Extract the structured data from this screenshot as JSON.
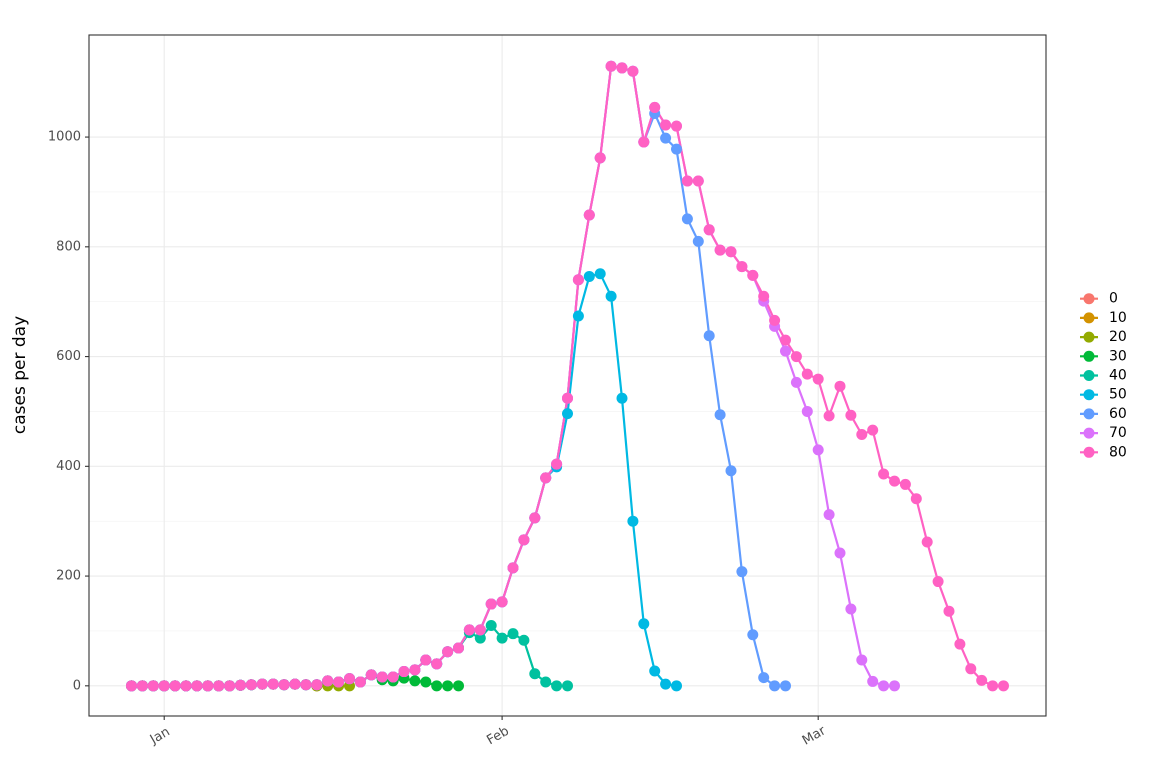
{
  "chart_data": {
    "type": "line",
    "y_label": "cases per day",
    "x": [
      -3,
      -2,
      -1,
      0,
      1,
      2,
      3,
      4,
      5,
      6,
      7,
      8,
      9,
      10,
      11,
      12,
      13,
      14,
      15,
      16,
      17,
      18,
      19,
      20,
      21,
      22,
      23,
      24,
      25,
      26,
      27,
      28,
      29,
      30,
      31,
      32,
      33,
      34,
      35,
      36,
      37,
      38,
      39,
      40,
      41,
      42,
      43,
      44,
      45,
      46,
      47,
      48,
      49,
      50,
      51,
      52,
      53,
      54,
      55,
      56,
      57,
      58,
      59,
      60,
      61,
      62,
      63,
      64,
      65,
      66,
      67,
      68,
      69,
      70,
      71,
      72,
      73,
      74,
      75,
      76,
      77
    ],
    "xlim": [
      -6.9,
      80.9
    ],
    "xticks": [
      {
        "value": 0,
        "label": "Jan"
      },
      {
        "value": 31,
        "label": "Feb"
      },
      {
        "value": 60,
        "label": "Mar"
      }
    ],
    "ylim": [
      -55,
      1186
    ],
    "yticks": [
      0,
      200,
      400,
      600,
      800,
      1000
    ],
    "grid": true,
    "legend": "right",
    "series": [
      {
        "name": "0",
        "color": "#F8766D",
        "values": [
          0,
          0,
          0,
          0,
          0,
          0,
          0,
          0,
          0,
          0,
          1,
          2,
          3,
          3,
          2,
          3,
          2,
          null,
          null,
          null,
          null,
          null,
          null,
          null,
          null,
          null,
          null,
          null,
          null,
          null,
          null,
          null,
          null,
          null,
          null,
          null,
          null,
          null,
          null,
          null,
          null,
          null,
          null,
          null,
          null,
          null,
          null,
          null,
          null,
          null,
          null,
          null,
          null,
          null,
          null,
          null,
          null,
          null,
          null,
          null,
          null,
          null,
          null,
          null,
          null,
          null,
          null,
          null,
          null,
          null,
          null,
          null,
          null,
          null,
          null,
          null,
          null,
          null,
          null,
          null,
          null
        ]
      },
      {
        "name": "10",
        "color": "#D39200",
        "values": [
          0,
          0,
          0,
          0,
          0,
          0,
          0,
          0,
          0,
          0,
          1,
          2,
          3,
          3,
          2,
          3,
          2,
          0,
          null,
          null,
          null,
          null,
          null,
          null,
          null,
          null,
          null,
          null,
          null,
          null,
          null,
          null,
          null,
          null,
          null,
          null,
          null,
          null,
          null,
          null,
          null,
          null,
          null,
          null,
          null,
          null,
          null,
          null,
          null,
          null,
          null,
          null,
          null,
          null,
          null,
          null,
          null,
          null,
          null,
          null,
          null,
          null,
          null,
          null,
          null,
          null,
          null,
          null,
          null,
          null,
          null,
          null,
          null,
          null,
          null,
          null,
          null,
          null,
          null,
          null,
          null
        ]
      },
      {
        "name": "20",
        "color": "#93AA00",
        "values": [
          0,
          0,
          0,
          0,
          0,
          0,
          0,
          0,
          0,
          0,
          1,
          2,
          3,
          3,
          2,
          3,
          2,
          0,
          0,
          0,
          0,
          null,
          null,
          null,
          null,
          null,
          null,
          null,
          null,
          null,
          null,
          null,
          null,
          null,
          null,
          null,
          null,
          null,
          null,
          null,
          null,
          null,
          null,
          null,
          null,
          null,
          null,
          null,
          null,
          null,
          null,
          null,
          null,
          null,
          null,
          null,
          null,
          null,
          null,
          null,
          null,
          null,
          null,
          null,
          null,
          null,
          null,
          null,
          null,
          null,
          null,
          null,
          null,
          null,
          null,
          null,
          null,
          null,
          null,
          null,
          null
        ]
      },
      {
        "name": "30",
        "color": "#00BA38",
        "values": [
          0,
          0,
          0,
          0,
          0,
          0,
          0,
          0,
          0,
          0,
          1,
          2,
          3,
          3,
          2,
          3,
          2,
          2,
          9,
          7,
          13,
          7,
          20,
          11,
          9,
          14,
          9,
          7,
          0,
          0,
          0,
          null,
          null,
          null,
          null,
          null,
          null,
          null,
          null,
          null,
          null,
          null,
          null,
          null,
          null,
          null,
          null,
          null,
          null,
          null,
          null,
          null,
          null,
          null,
          null,
          null,
          null,
          null,
          null,
          null,
          null,
          null,
          null,
          null,
          null,
          null,
          null,
          null,
          null,
          null,
          null,
          null,
          null,
          null,
          null,
          null,
          null,
          null,
          null,
          null,
          null
        ]
      },
      {
        "name": "40",
        "color": "#00C19F",
        "values": [
          0,
          0,
          0,
          0,
          0,
          0,
          0,
          0,
          0,
          0,
          1,
          2,
          3,
          3,
          2,
          3,
          2,
          2,
          9,
          7,
          13,
          7,
          20,
          16,
          16,
          26,
          29,
          47,
          40,
          62,
          69,
          97,
          87,
          110,
          87,
          95,
          83,
          22,
          7,
          0,
          0,
          null,
          null,
          null,
          null,
          null,
          null,
          null,
          null,
          null,
          null,
          null,
          null,
          null,
          null,
          null,
          null,
          null,
          null,
          null,
          null,
          null,
          null,
          null,
          null,
          null,
          null,
          null,
          null,
          null,
          null,
          null,
          null,
          null,
          null,
          null,
          null,
          null,
          null,
          null,
          null
        ]
      },
      {
        "name": "50",
        "color": "#00B9E3",
        "values": [
          0,
          0,
          0,
          0,
          0,
          0,
          0,
          0,
          0,
          0,
          1,
          2,
          3,
          3,
          2,
          3,
          2,
          2,
          9,
          7,
          13,
          7,
          20,
          16,
          16,
          26,
          29,
          47,
          40,
          62,
          69,
          102,
          102,
          149,
          153,
          215,
          266,
          306,
          379,
          399,
          496,
          674,
          746,
          751,
          710,
          524,
          300,
          113,
          27,
          3,
          0,
          null,
          null,
          null,
          null,
          null,
          null,
          null,
          null,
          null,
          null,
          null,
          null,
          null,
          null,
          null,
          null,
          null,
          null,
          null,
          null,
          null,
          null,
          null,
          null,
          null,
          null,
          null,
          null,
          null,
          null
        ]
      },
      {
        "name": "60",
        "color": "#619CFF",
        "values": [
          0,
          0,
          0,
          0,
          0,
          0,
          0,
          0,
          0,
          0,
          1,
          2,
          3,
          3,
          2,
          3,
          2,
          2,
          9,
          7,
          13,
          7,
          20,
          16,
          16,
          26,
          29,
          47,
          40,
          62,
          69,
          102,
          102,
          149,
          153,
          215,
          266,
          306,
          379,
          404,
          524,
          740,
          858,
          962,
          1129,
          1126,
          1120,
          991,
          1043,
          998,
          978,
          851,
          810,
          638,
          494,
          392,
          208,
          93,
          15,
          0,
          0,
          null,
          null,
          null,
          null,
          null,
          null,
          null,
          null,
          null,
          null,
          null,
          null,
          null,
          null,
          null,
          null,
          null,
          null,
          null,
          null
        ]
      },
      {
        "name": "70",
        "color": "#DB72FB",
        "values": [
          0,
          0,
          0,
          0,
          0,
          0,
          0,
          0,
          0,
          0,
          1,
          2,
          3,
          3,
          2,
          3,
          2,
          2,
          9,
          7,
          13,
          7,
          20,
          16,
          16,
          26,
          29,
          47,
          40,
          62,
          69,
          102,
          102,
          149,
          153,
          215,
          266,
          306,
          379,
          404,
          524,
          740,
          858,
          962,
          1129,
          1126,
          1120,
          991,
          1054,
          1022,
          1020,
          920,
          920,
          831,
          794,
          791,
          764,
          748,
          701,
          655,
          610,
          553,
          500,
          430,
          312,
          242,
          140,
          47,
          8,
          0,
          0,
          null,
          null,
          null,
          null,
          null,
          null,
          null,
          null,
          null,
          null
        ]
      },
      {
        "name": "80",
        "color": "#FF61C3",
        "values": [
          0,
          0,
          0,
          0,
          0,
          0,
          0,
          0,
          0,
          0,
          1,
          2,
          3,
          3,
          2,
          3,
          2,
          2,
          9,
          7,
          13,
          7,
          20,
          16,
          16,
          26,
          29,
          47,
          40,
          62,
          69,
          102,
          102,
          149,
          153,
          215,
          266,
          306,
          379,
          404,
          524,
          740,
          858,
          962,
          1129,
          1126,
          1120,
          991,
          1054,
          1022,
          1020,
          920,
          920,
          831,
          794,
          791,
          764,
          748,
          710,
          666,
          630,
          600,
          568,
          559,
          492,
          546,
          493,
          458,
          466,
          386,
          373,
          367,
          341,
          262,
          190,
          136,
          76,
          31,
          10,
          0,
          0
        ]
      }
    ]
  }
}
